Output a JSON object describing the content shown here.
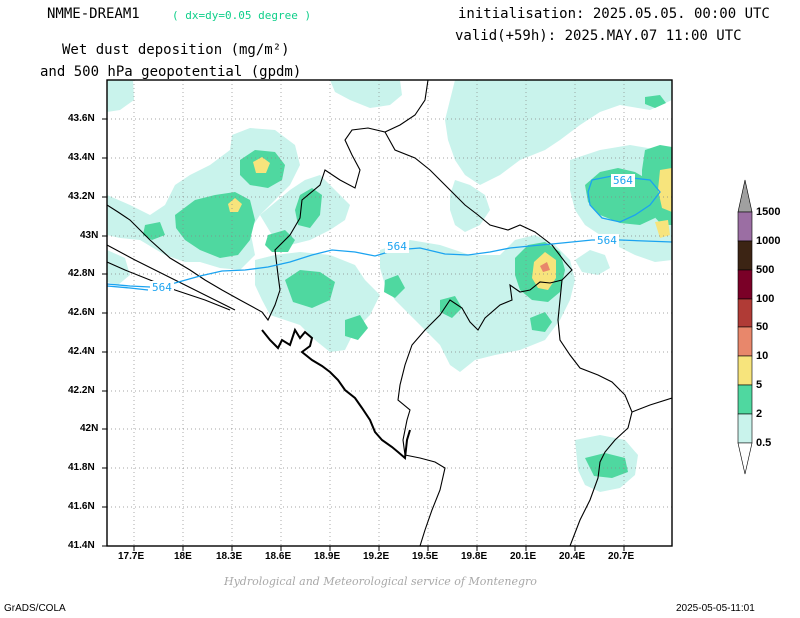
{
  "header": {
    "model": "NMME-DREAM1",
    "resolution": "( dx=dy=0.05 degree )",
    "title_line1": "Wet dust deposition (mg/m²)",
    "title_line2": "and 500 hPa geopotential (gpdm)",
    "init": "initialisation: 2025.05.05. 00:00 UTC",
    "valid": "valid(+59h): 2025.MAY.07 11:00 UTC"
  },
  "axes": {
    "x_ticks": [
      "17.7E",
      "18E",
      "18.3E",
      "18.6E",
      "18.9E",
      "19.2E",
      "19.5E",
      "19.8E",
      "20.1E",
      "20.4E",
      "20.7E"
    ],
    "y_ticks": [
      "43.6N",
      "43.4N",
      "43.2N",
      "43N",
      "42.8N",
      "42.6N",
      "42.4N",
      "42.2N",
      "42N",
      "41.8N",
      "41.6N",
      "41.4N"
    ],
    "x_range": [
      17.5,
      21.0
    ],
    "y_range": [
      41.4,
      43.8
    ]
  },
  "contour_labels": [
    "564",
    "564",
    "564",
    "564"
  ],
  "legend": {
    "levels": [
      "1500",
      "1000",
      "500",
      "100",
      "50",
      "10",
      "5",
      "2",
      "0.5"
    ],
    "colors": [
      "#9b6ea3",
      "#3c2414",
      "#7a0027",
      "#b03b36",
      "#e8876b",
      "#f7e47c",
      "#4fd8a0",
      "#c9f3ec"
    ]
  },
  "colors": {
    "light_teal": "#c9f3ec",
    "teal": "#4fd8a0",
    "yellow": "#f7e47c",
    "orange": "#e8876b",
    "contour": "#1ba3f0"
  },
  "footer": {
    "credit": "Hydrological and Meteorological service of Montenegro",
    "software": "GrADS/COLA",
    "timestamp": "2025-05-05-11:01"
  }
}
